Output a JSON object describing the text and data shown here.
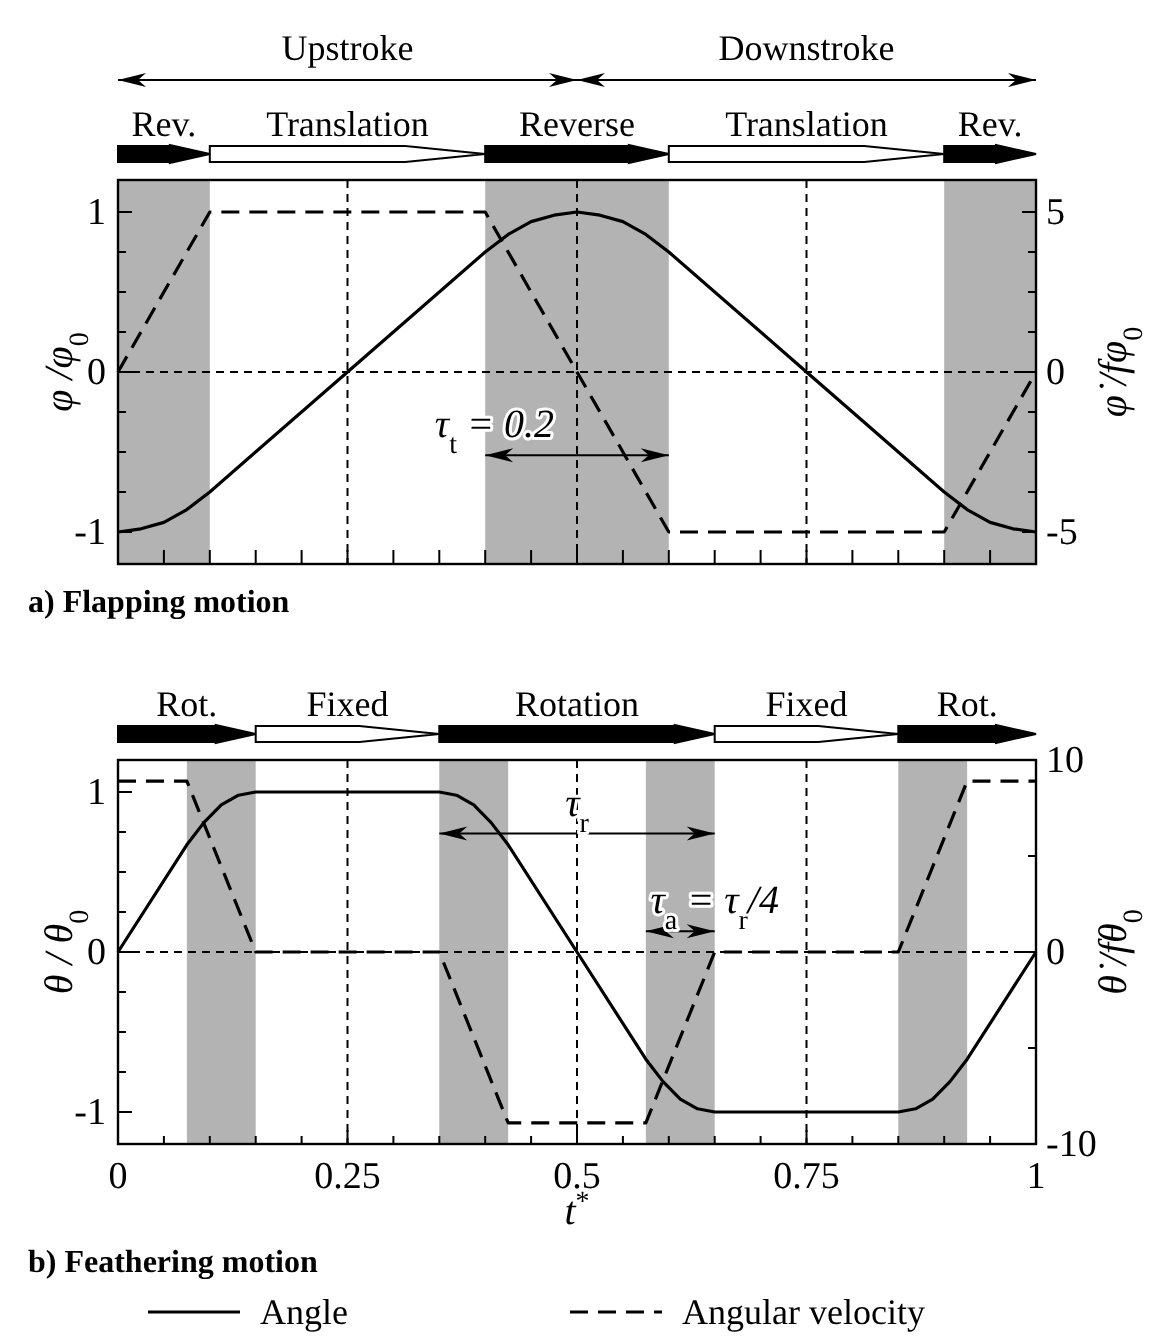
{
  "chart_data": [
    {
      "type": "line",
      "title": "a) Flapping motion",
      "ylabel": "φ /φ$_{0}$",
      "y2label": "φ̇ /fφ$_{0}$",
      "xlim": [
        0,
        1
      ],
      "xticks": [
        0,
        0.05,
        0.1,
        0.15,
        0.2,
        0.25,
        0.3,
        0.35,
        0.4,
        0.45,
        0.5,
        0.55,
        0.6,
        0.65,
        0.7,
        0.75,
        0.8,
        0.85,
        0.9,
        0.95,
        1
      ],
      "ylim": [
        -1.2,
        1.2
      ],
      "yticks": [
        -1,
        {
          "value": -0.75,
          "label": null
        },
        {
          "value": -0.5,
          "label": null
        },
        {
          "value": -0.25,
          "label": null
        },
        0,
        {
          "value": 0.25,
          "label": null
        },
        {
          "value": 0.5,
          "label": null
        },
        {
          "value": 0.75,
          "label": null
        },
        1
      ],
      "y2lim": [
        -6,
        6
      ],
      "y2ticks": [
        -5,
        {
          "value": -3.75,
          "label": null
        },
        {
          "value": -2.5,
          "label": null
        },
        {
          "value": -1.25,
          "label": null
        },
        0,
        {
          "value": 1.25,
          "label": null
        },
        {
          "value": 2.5,
          "label": null
        },
        {
          "value": 3.75,
          "label": null
        },
        5
      ],
      "tick_labels": "y",
      "bands": [
        {
          "axis": "x",
          "from": 0,
          "to": 0.1,
          "color": "#b3b3b3"
        },
        {
          "axis": "x",
          "from": 0.4,
          "to": 0.6,
          "color": "#b3b3b3"
        },
        {
          "axis": "x",
          "from": 0.9,
          "to": 1,
          "color": "#b3b3b3"
        }
      ],
      "ref_lines": [
        {
          "axis": "x",
          "value": 0.25,
          "color": "#000000",
          "line_style": "dashed"
        },
        {
          "axis": "x",
          "value": 0.5,
          "color": "#000000",
          "line_style": "dashed"
        },
        {
          "axis": "x",
          "value": 0.75,
          "color": "#000000",
          "line_style": "dashed"
        },
        {
          "axis": "y",
          "value": 0,
          "color": "#000000",
          "line_style": "dashed"
        }
      ],
      "annotations": [
        "Upstroke",
        "Downstroke",
        "Rev.",
        "Translation",
        "Reverse",
        "Translation",
        "Rev.",
        {
          "text": "τ$_{t}$ = 0.2",
          "x": 0.41,
          "y": -0.52
        }
      ],
      "series": [
        {
          "color": "#000000",
          "line_style": "solid",
          "x": [
            0,
            0.025,
            0.05,
            0.075,
            0.1,
            0.25,
            0.4,
            0.425,
            0.45,
            0.475,
            0.5,
            0.525,
            0.55,
            0.575,
            0.6,
            0.75,
            0.9,
            0.925,
            0.95,
            0.975,
            1
          ],
          "values": [
            -1,
            -0.98,
            -0.94,
            -0.86,
            -0.75,
            0,
            0.75,
            0.86,
            0.94,
            0.98,
            1,
            0.98,
            0.94,
            0.86,
            0.75,
            0,
            -0.75,
            -0.86,
            -0.94,
            -0.98,
            -1
          ]
        },
        {
          "color": "#000000",
          "line_style": "dashed",
          "axis": "y2",
          "x": [
            0,
            0.1,
            0.4,
            0.6,
            0.9,
            1
          ],
          "values": [
            0,
            5,
            5,
            -5,
            -5,
            0
          ]
        }
      ]
    },
    {
      "type": "line",
      "title": "b) Feathering motion",
      "xlabel": "t$^{*}$",
      "ylabel": "θ / θ$_{0}$",
      "y2label": "θ̇ /fθ$_{0}$",
      "legend": "bottom",
      "xlim": [
        0,
        1
      ],
      "xticks": [
        0,
        {
          "value": 0.05,
          "label": null
        },
        {
          "value": 0.1,
          "label": null
        },
        {
          "value": 0.15,
          "label": null
        },
        {
          "value": 0.2,
          "label": null
        },
        0.25,
        {
          "value": 0.3,
          "label": null
        },
        {
          "value": 0.35,
          "label": null
        },
        {
          "value": 0.4,
          "label": null
        },
        {
          "value": 0.45,
          "label": null
        },
        0.5,
        {
          "value": 0.55,
          "label": null
        },
        {
          "value": 0.6,
          "label": null
        },
        {
          "value": 0.65,
          "label": null
        },
        {
          "value": 0.7,
          "label": null
        },
        0.75,
        {
          "value": 0.8,
          "label": null
        },
        {
          "value": 0.85,
          "label": null
        },
        {
          "value": 0.9,
          "label": null
        },
        {
          "value": 0.95,
          "label": null
        },
        1
      ],
      "ylim": [
        -1.2,
        1.2
      ],
      "yticks": [
        -1,
        {
          "value": -0.75,
          "label": null
        },
        {
          "value": -0.5,
          "label": null
        },
        {
          "value": -0.25,
          "label": null
        },
        0,
        {
          "value": 0.25,
          "label": null
        },
        {
          "value": 0.5,
          "label": null
        },
        {
          "value": 0.75,
          "label": null
        },
        1
      ],
      "y2lim": [
        -10,
        10
      ],
      "y2ticks": [
        -10,
        {
          "value": -5,
          "label": null
        },
        0,
        {
          "value": 5,
          "label": null
        },
        10
      ],
      "bands": [
        {
          "axis": "x",
          "from": 0.075,
          "to": 0.15,
          "color": "#b3b3b3"
        },
        {
          "axis": "x",
          "from": 0.35,
          "to": 0.425,
          "color": "#b3b3b3"
        },
        {
          "axis": "x",
          "from": 0.575,
          "to": 0.65,
          "color": "#b3b3b3"
        },
        {
          "axis": "x",
          "from": 0.85,
          "to": 0.925,
          "color": "#b3b3b3"
        }
      ],
      "ref_lines": [
        {
          "axis": "x",
          "value": 0.25,
          "color": "#000000",
          "line_style": "dashed"
        },
        {
          "axis": "x",
          "value": 0.5,
          "color": "#000000",
          "line_style": "dashed"
        },
        {
          "axis": "x",
          "value": 0.75,
          "color": "#000000",
          "line_style": "dashed"
        },
        {
          "axis": "y",
          "value": 0,
          "color": "#000000",
          "line_style": "dashed"
        }
      ],
      "annotations": [
        "Rot.",
        "Fixed",
        "Rotation",
        "Fixed",
        "Rot.",
        {
          "text": "τ$_{r}$",
          "x": 0.5,
          "y": 0.74
        },
        {
          "text": "τ$_{a}$ = τ$_{r}$/4",
          "x": 0.65,
          "y": 0.13
        }
      ],
      "series": [
        {
          "name": "Angle",
          "color": "#000000",
          "line_style": "solid",
          "x": [
            0,
            0.075,
            0.09375,
            0.1125,
            0.13125,
            0.15,
            0.35,
            0.36875,
            0.3875,
            0.40625,
            0.425,
            0.5,
            0.575,
            0.59375,
            0.6125,
            0.63125,
            0.65,
            0.85,
            0.86875,
            0.8875,
            0.90625,
            0.925,
            1
          ],
          "values": [
            0,
            0.67,
            0.81,
            0.92,
            0.98,
            1,
            1,
            0.98,
            0.92,
            0.81,
            0.67,
            0,
            -0.67,
            -0.81,
            -0.92,
            -0.98,
            -1,
            -1,
            -0.98,
            -0.92,
            -0.81,
            -0.67,
            0
          ]
        },
        {
          "name": "Angular velocity",
          "color": "#000000",
          "line_style": "dashed",
          "axis": "y2",
          "x": [
            0,
            0.075,
            0.15,
            0.35,
            0.425,
            0.575,
            0.65,
            0.85,
            0.925,
            1
          ],
          "values": [
            8.9,
            8.9,
            0,
            0,
            -8.9,
            -8.9,
            0,
            0,
            8.9,
            8.9
          ]
        }
      ]
    }
  ]
}
